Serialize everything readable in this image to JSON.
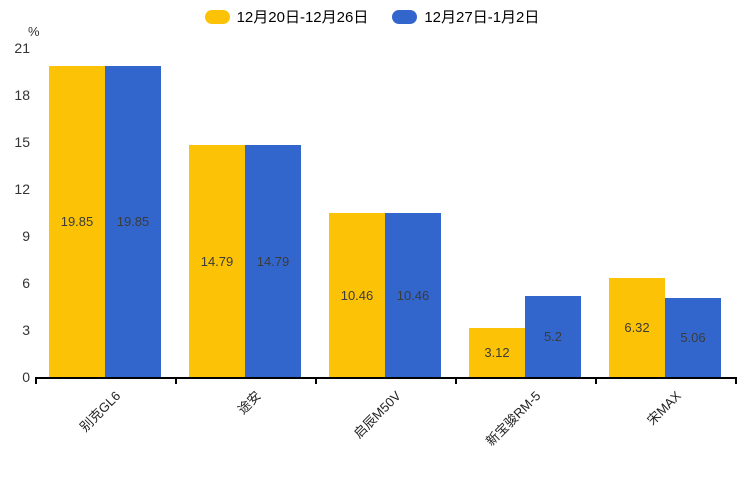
{
  "chart_data": {
    "type": "bar",
    "title": "",
    "unit_label": "%",
    "categories": [
      "别克GL6",
      "途安",
      "启辰M50V",
      "新宝骏RM-5",
      "宋MAX"
    ],
    "series": [
      {
        "name": "12月20日-12月26日",
        "color": "#FCC306",
        "values": [
          19.85,
          14.79,
          10.46,
          3.12,
          6.32
        ]
      },
      {
        "name": "12月27日-1月2日",
        "color": "#3366CC",
        "values": [
          19.85,
          14.79,
          10.46,
          5.2,
          5.06
        ]
      }
    ],
    "ylim": [
      0,
      21
    ],
    "yticks": [
      0,
      3,
      6,
      9,
      12,
      15,
      18,
      21
    ],
    "grid": false,
    "legend_position": "top",
    "axis_color": "#000000",
    "label_color": "#3b3b3b"
  }
}
